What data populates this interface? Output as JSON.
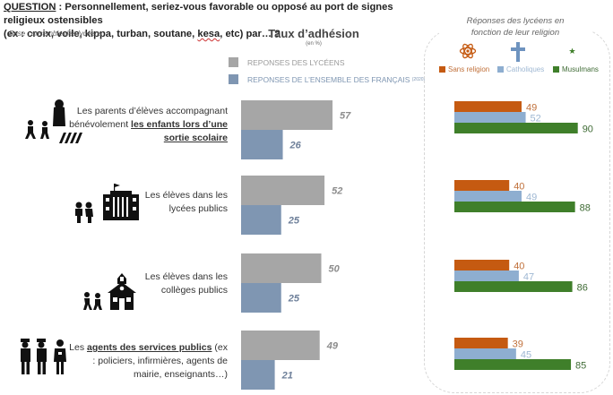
{
  "question": {
    "prefix": "QUESTION",
    "line1": " : Personnellement, seriez-vous favorable ou opposé au port de signes religieux ostensibles",
    "line2_a": "(ex : croix, voile, kippa, turban, soutane, ",
    "line2_kesa": "kesa",
    "line2_b": ", etc) par… ?"
  },
  "base": "Base : ensemble des lycéens",
  "left_chart": {
    "title": "Taux d’adhésion",
    "subtitle": "(en %)"
  },
  "right_panel": {
    "title_line1": "Réponses des lycéens en",
    "title_line2": "fonction de leur religion",
    "icons": [
      "atom-icon",
      "cross-icon",
      "crescent-star-icon"
    ]
  },
  "rows": [
    {
      "label_plain": "Les parents d’élèves accompagnant bénévolement ",
      "label_bold": "les enfants lors d’une sortie scolaire",
      "label_after": "",
      "icon_set": "parents-children-crosswalk"
    },
    {
      "label_plain": "Les élèves dans les lycées publics",
      "label_bold": "",
      "label_after": "",
      "icon_set": "students-highschool"
    },
    {
      "label_plain": "Les élèves dans les collèges publics",
      "label_bold": "",
      "label_after": "",
      "icon_set": "students-schoolhouse"
    },
    {
      "label_plain": "Les ",
      "label_bold": "agents des services publics",
      "label_after": " (ex : policiers, infirmières, agents de mairie, enseignants…)",
      "icon_set": "police-nurse"
    }
  ],
  "chart_data": [
    {
      "type": "bar",
      "orientation": "horizontal",
      "title": "Taux d’adhésion",
      "subtitle": "(en %)",
      "categories": [
        "Les parents d’élèves accompagnant bénévolement les enfants lors d’une sortie scolaire",
        "Les élèves dans les lycées publics",
        "Les élèves dans les collèges publics",
        "Les agents des services publics (ex : policiers, infirmières, agents de mairie, enseignants…)"
      ],
      "series": [
        {
          "name": "REPONSES DES LYCÉENS",
          "color": "#a6a6a6",
          "label_color": "#8c8c8c",
          "values": [
            57,
            52,
            50,
            49
          ]
        },
        {
          "name": "REPONSES DE L’ENSEMBLE DES FRANÇAIS",
          "name_sup": "(2020)",
          "color": "#7f96b2",
          "label_color": "#6d7f99",
          "values": [
            26,
            25,
            25,
            21
          ]
        }
      ],
      "xlim": [
        0,
        100
      ],
      "grid": false,
      "legend": "top"
    },
    {
      "type": "bar",
      "orientation": "horizontal",
      "title": "Réponses des lycéens en fonction de leur religion",
      "categories": [
        "Les parents d’élèves accompagnant bénévolement les enfants lors d’une sortie scolaire",
        "Les élèves dans les lycées publics",
        "Les élèves dans les collèges publics",
        "Les agents des services publics"
      ],
      "series": [
        {
          "name": "Sans religion",
          "color": "#c55a11",
          "label_color": "#c0703a",
          "values": [
            49,
            40,
            40,
            39
          ]
        },
        {
          "name": "Catholiques",
          "color": "#8eaed0",
          "label_color": "#9fb8d3",
          "values": [
            52,
            49,
            47,
            45
          ]
        },
        {
          "name": "Musulmans",
          "color": "#3f7f2a",
          "label_color": "#3f6b35",
          "values": [
            90,
            88,
            86,
            85
          ]
        }
      ],
      "xlim": [
        0,
        100
      ],
      "grid": false,
      "legend": "top"
    }
  ]
}
